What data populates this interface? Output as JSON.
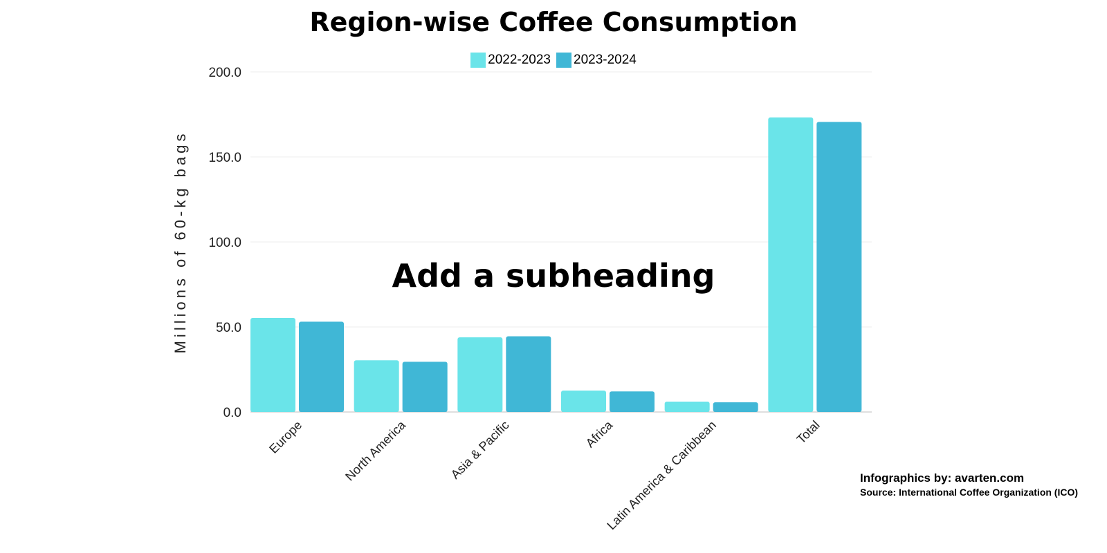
{
  "chart_data": {
    "type": "bar",
    "title": "Region-wise Coffee Consumption",
    "ylabel": "Millions of 60-kg bags",
    "xlabel": "",
    "categories": [
      "Europe",
      "North America",
      "Asia & Pacific",
      "Africa",
      "Latin America & Caribbean",
      "Total"
    ],
    "series": [
      {
        "name": "2022-2023",
        "color": "#6ae4e9",
        "values": [
          55.3,
          30.4,
          43.9,
          12.6,
          6.1,
          173.2
        ]
      },
      {
        "name": "2023-2024",
        "color": "#40b7d6",
        "values": [
          53.1,
          29.5,
          44.5,
          12.1,
          5.7,
          170.6
        ]
      }
    ],
    "ylim": [
      0,
      200
    ],
    "yticks": [
      "0.0",
      "50.0",
      "100.0",
      "150.0",
      "200.0"
    ],
    "grid": true,
    "legend": "top-center"
  },
  "overlay": {
    "subheading": "Add a subheading"
  },
  "footer": {
    "credit": "Infographics by: avarten.com",
    "source": "Source: International Coffee Organization (ICO)"
  }
}
